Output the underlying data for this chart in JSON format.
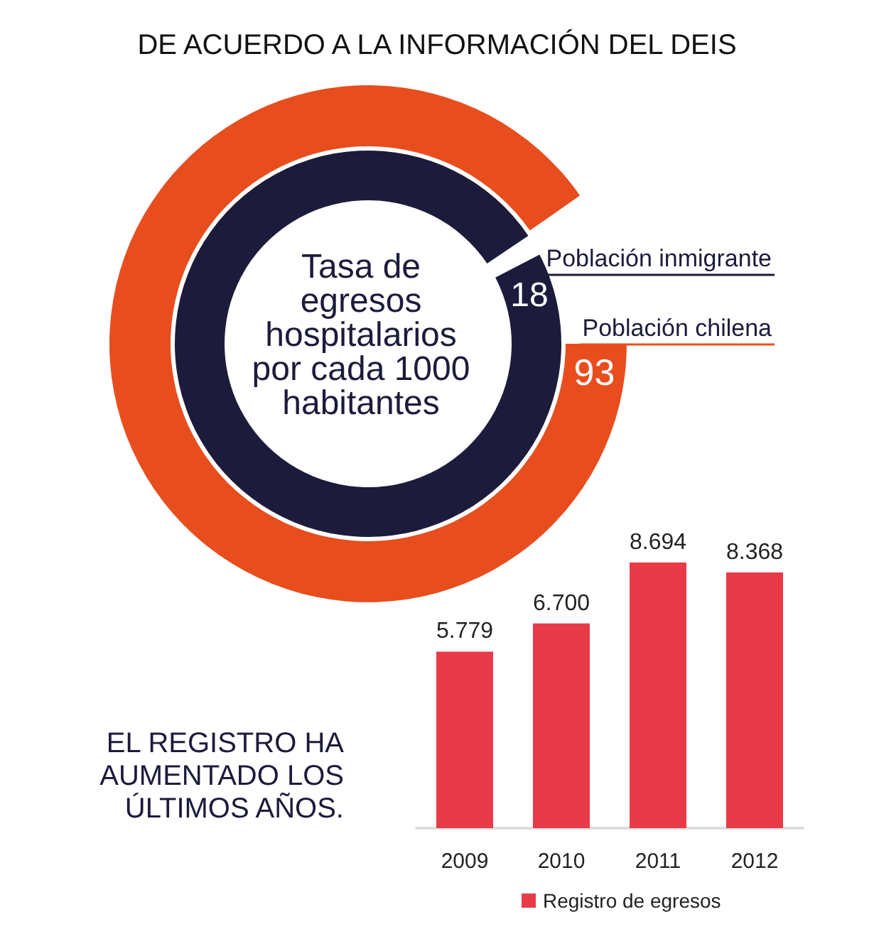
{
  "chart_data": [
    {
      "type": "other",
      "title": "DE ACUERDO A LA INFORMACIÓN DEL DEIS",
      "annotations": [
        "Tasa de\negresos\nhospitalarios\npor cada 1000\nhabitantes"
      ],
      "categories": [
        "Población inmigrante",
        "Población chilena"
      ],
      "values": [
        18,
        93
      ],
      "colors": [
        "#1c1b3b",
        "#e84d1e"
      ],
      "data_labels": true
    },
    {
      "type": "bar",
      "categories": [
        "2009",
        "2010",
        "2011",
        "2012"
      ],
      "series": [
        {
          "name": "Registro de egresos",
          "color": "#e93a49",
          "values": [
            5779,
            6700,
            8694,
            8368
          ],
          "value_labels": [
            "5.779",
            "6.700",
            "8.694",
            "8.368"
          ]
        }
      ],
      "annotations": [
        "EL REGISTRO HA\nAUMENTADO LOS\nÚLTIMOS AÑOS."
      ],
      "legend": "bottom"
    }
  ]
}
